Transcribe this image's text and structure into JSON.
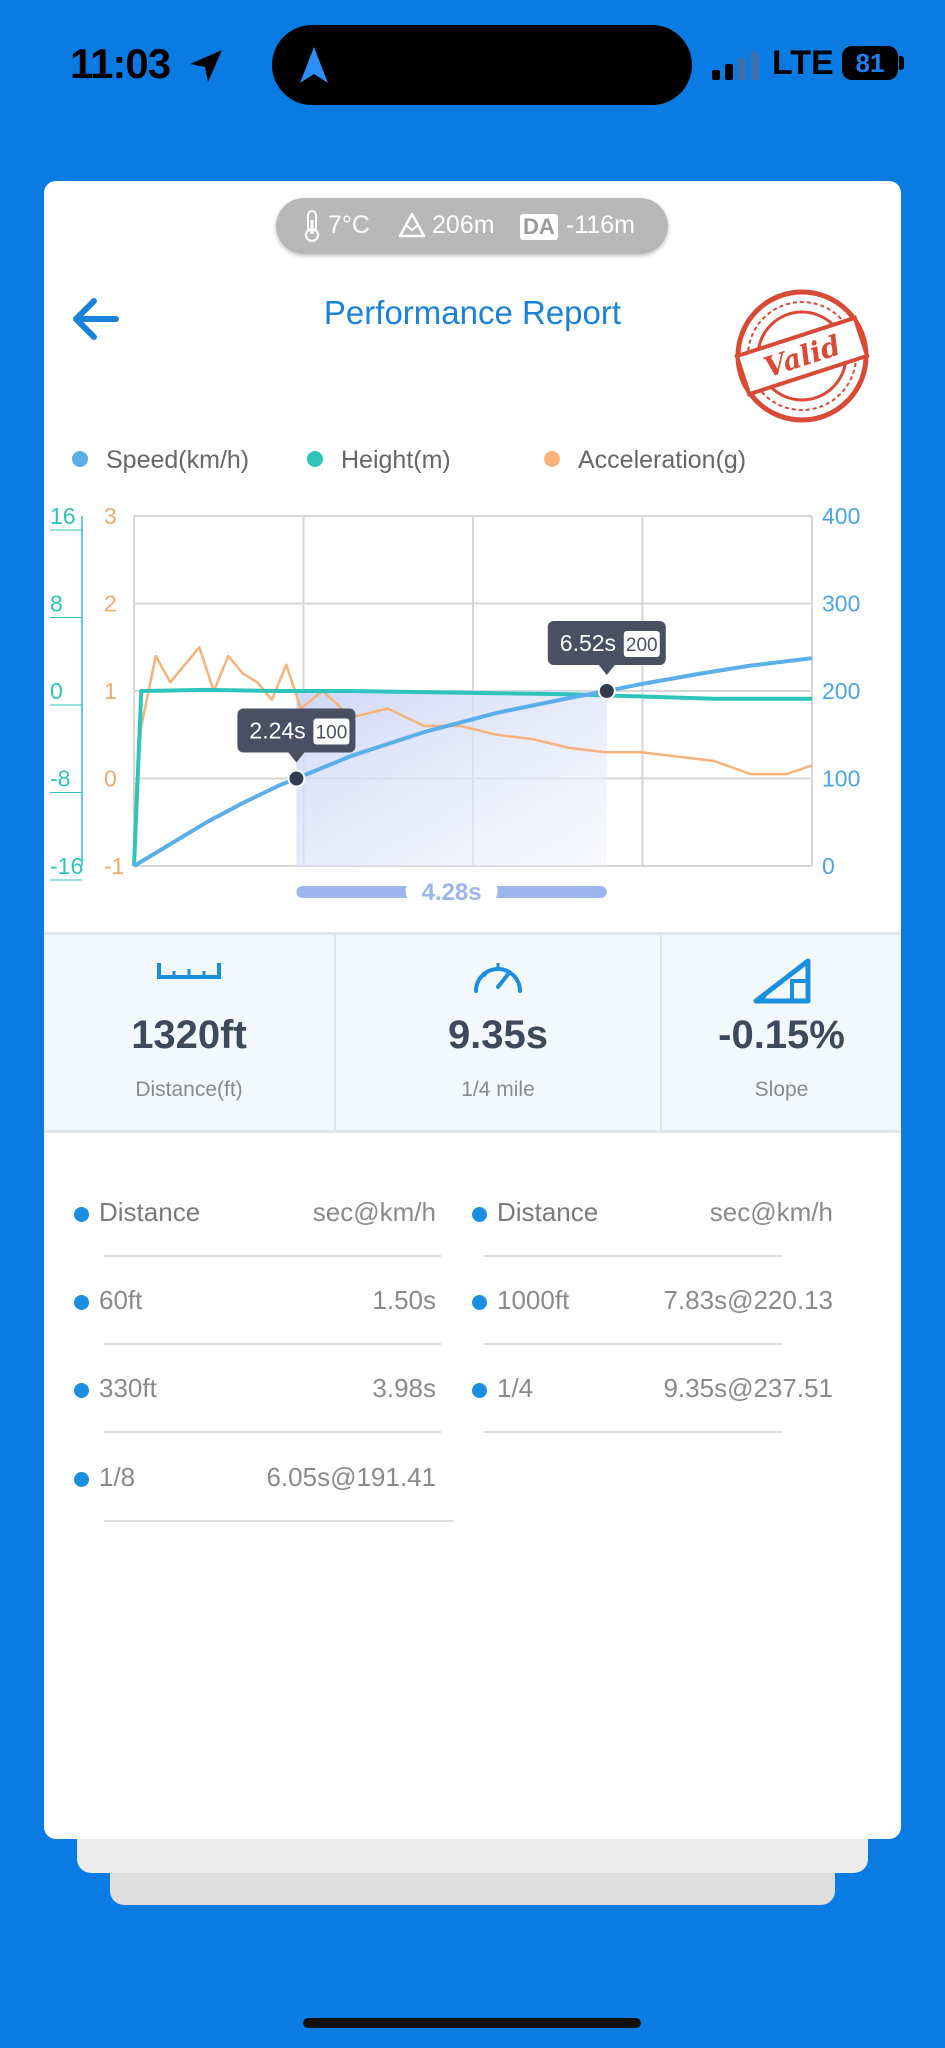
{
  "status_bar": {
    "time": "11:03",
    "network": "LTE",
    "battery": "81"
  },
  "env": {
    "temperature": "7°C",
    "altitude": "206m",
    "da_label": "DA",
    "density_altitude": "-116m"
  },
  "header": {
    "title": "Performance Report",
    "stamp_text": "Valid"
  },
  "legend": [
    {
      "label": "Speed(km/h)",
      "color": "#5aaeea"
    },
    {
      "label": "Height(m)",
      "color": "#2ec4bc"
    },
    {
      "label": "Acceleration(g)",
      "color": "#f7b27a"
    }
  ],
  "chart_data": {
    "type": "line",
    "height_axis_ticks": [
      "16",
      "8",
      "0",
      "-8",
      "-16"
    ],
    "accel_axis_ticks": [
      "3",
      "2",
      "1",
      "0",
      "-1"
    ],
    "speed_axis_ticks": [
      "400",
      "300",
      "200",
      "100",
      "0"
    ],
    "x_range": [
      0,
      9.35
    ],
    "speed_range": [
      0,
      400
    ],
    "series": [
      {
        "name": "Speed(km/h)",
        "x": [
          0,
          0.5,
          1.0,
          1.5,
          2.0,
          2.24,
          3.0,
          4.0,
          5.0,
          6.0,
          6.52,
          7.0,
          7.83,
          8.5,
          9.35
        ],
        "values": [
          0,
          25,
          50,
          72,
          92,
          100,
          126,
          153,
          175,
          192,
          200,
          208,
          220.13,
          229,
          237.51
        ]
      },
      {
        "name": "Height(m)",
        "x": [
          0,
          0.1,
          1,
          2,
          3,
          4,
          5,
          6,
          7,
          8,
          9.35
        ],
        "values": [
          -16,
          0,
          0.1,
          0,
          0,
          -0.1,
          -0.2,
          -0.3,
          -0.5,
          -0.7,
          -0.7
        ]
      },
      {
        "name": "Acceleration(g)",
        "x": [
          0,
          0.1,
          0.3,
          0.5,
          0.7,
          0.9,
          1.1,
          1.3,
          1.5,
          1.7,
          1.9,
          2.1,
          2.3,
          2.6,
          3.0,
          3.5,
          4.0,
          4.5,
          5.0,
          5.5,
          6.0,
          6.5,
          7.0,
          7.5,
          8.0,
          8.5,
          9.0,
          9.35
        ],
        "values": [
          -0.4,
          0.6,
          1.4,
          1.1,
          1.3,
          1.5,
          1.0,
          1.4,
          1.2,
          1.1,
          0.9,
          1.3,
          0.8,
          1.0,
          0.7,
          0.8,
          0.6,
          0.6,
          0.5,
          0.45,
          0.35,
          0.3,
          0.3,
          0.25,
          0.2,
          0.05,
          0.05,
          0.15
        ]
      }
    ],
    "markers": [
      {
        "time": "2.24s",
        "speed": "100",
        "x": 2.24,
        "y": 100
      },
      {
        "time": "6.52s",
        "speed": "200",
        "x": 6.52,
        "y": 200
      }
    ],
    "interval_label": "4.28s"
  },
  "stats": [
    {
      "value": "1320ft",
      "label": "Distance(ft)",
      "icon": "ruler-icon"
    },
    {
      "value": "9.35s",
      "label": "1/4 mile",
      "icon": "speedometer-icon"
    },
    {
      "value": "-0.15%",
      "label": "Slope",
      "icon": "slope-icon"
    }
  ],
  "splits": {
    "header": {
      "name": "Distance",
      "value": "sec@km/h"
    },
    "left": [
      {
        "name": "60ft",
        "value": "1.50s"
      },
      {
        "name": "330ft",
        "value": "3.98s"
      },
      {
        "name": "1/8",
        "value": "6.05s@191.41"
      }
    ],
    "right": [
      {
        "name": "1000ft",
        "value": "7.83s@220.13"
      },
      {
        "name": "1/4",
        "value": "9.35s@237.51"
      }
    ]
  }
}
